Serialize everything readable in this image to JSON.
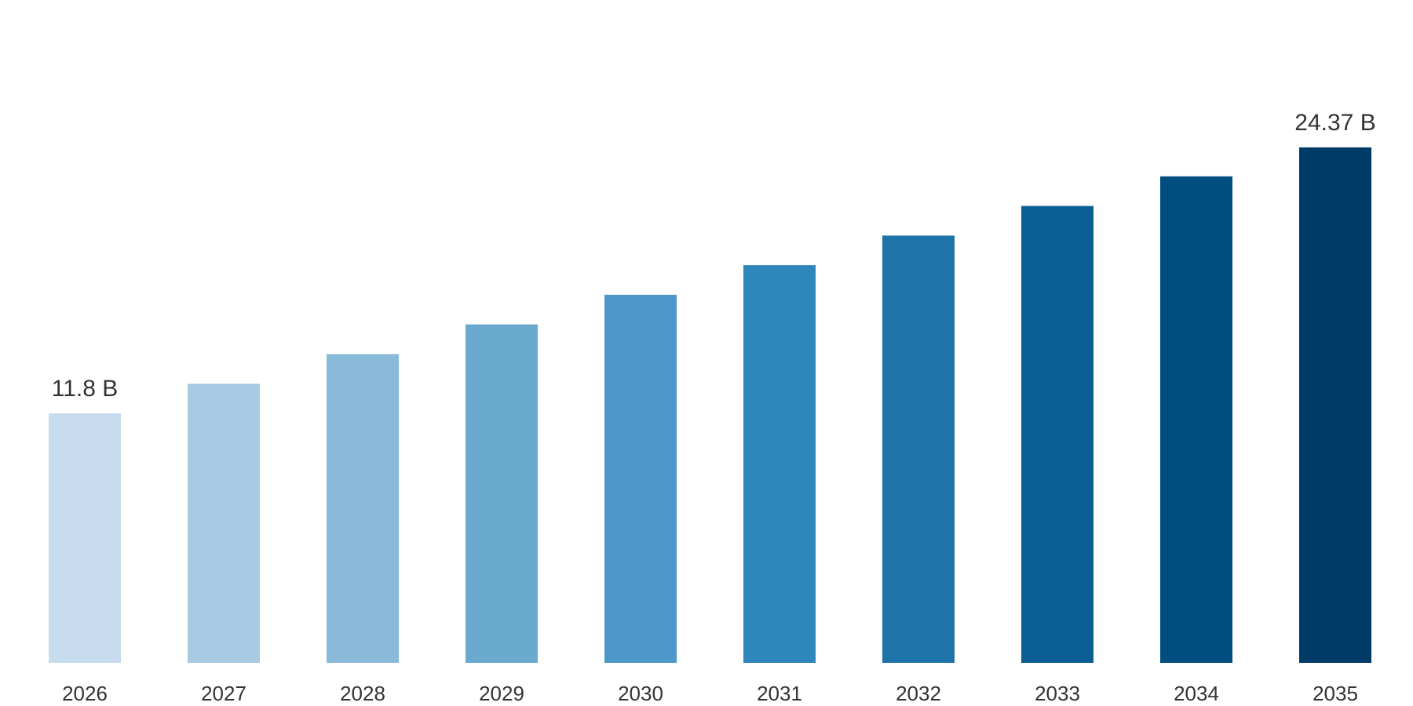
{
  "chart_data": {
    "type": "bar",
    "categories": [
      "2026",
      "2027",
      "2028",
      "2029",
      "2030",
      "2031",
      "2032",
      "2033",
      "2034",
      "2035"
    ],
    "values": [
      11.8,
      13.2,
      14.6,
      16.0,
      17.4,
      18.8,
      20.2,
      21.6,
      23.0,
      24.37
    ],
    "data_labels": [
      {
        "index": 0,
        "text": "11.8 B"
      },
      {
        "index": 9,
        "text": "24.37 B"
      }
    ],
    "colors": [
      "#c6dbed",
      "#a9cae3",
      "#89bad9",
      "#6aaacf",
      "#4d98c8",
      "#2f86ba",
      "#1e74a8",
      "#0b5e94",
      "#004d80",
      "#003a66"
    ],
    "ylim": [
      0,
      28
    ],
    "grid": false,
    "legend": "none",
    "title": "",
    "xlabel": "",
    "ylabel": ""
  }
}
